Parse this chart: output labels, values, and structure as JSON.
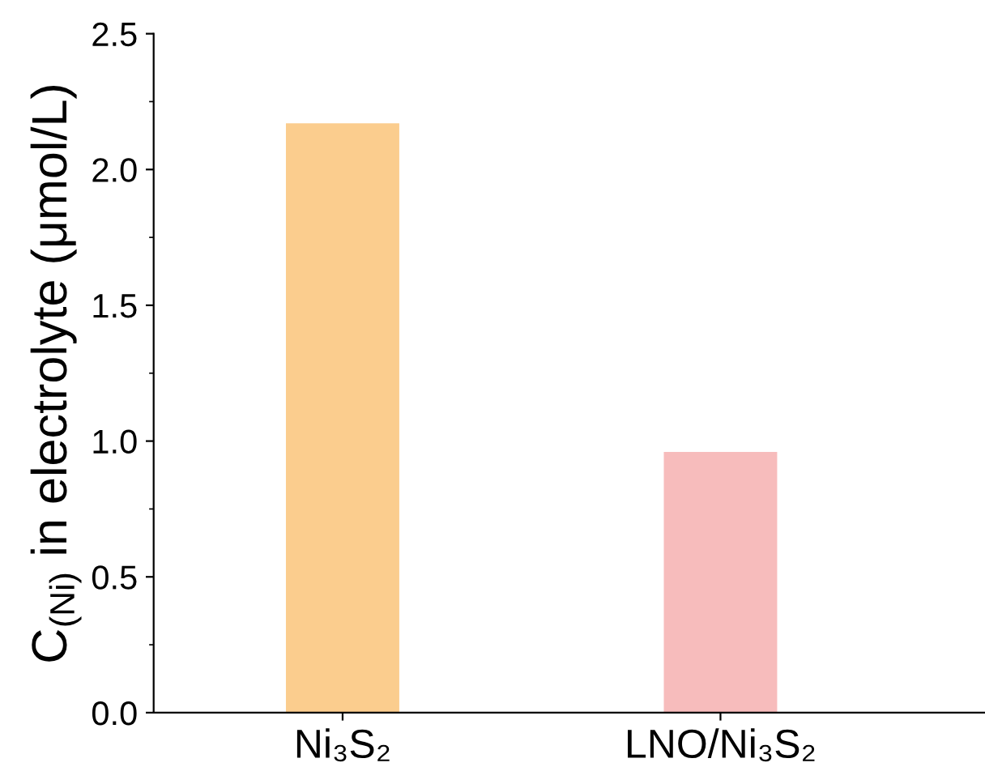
{
  "chart_data": {
    "type": "bar",
    "ylabel": "C$_{(Ni)}$ in electrolyte (μmol/L)",
    "categories": [
      "Ni₃S₂",
      "LNO/Ni₃S₂"
    ],
    "values": [
      2.17,
      0.96
    ],
    "colors": [
      "#fbcd8e",
      "#f7bcbc"
    ],
    "ylim": [
      0,
      2.5
    ],
    "yticks": [
      {
        "value": 0,
        "label": "0.0"
      },
      {
        "value": 0.5,
        "label": "0.5"
      },
      {
        "value": 1,
        "label": "1.0"
      },
      {
        "value": 1.5,
        "label": "1.5"
      },
      {
        "value": 2,
        "label": "2.0"
      },
      {
        "value": 2.5,
        "label": "2.5"
      }
    ],
    "grid": false,
    "legend": false
  }
}
